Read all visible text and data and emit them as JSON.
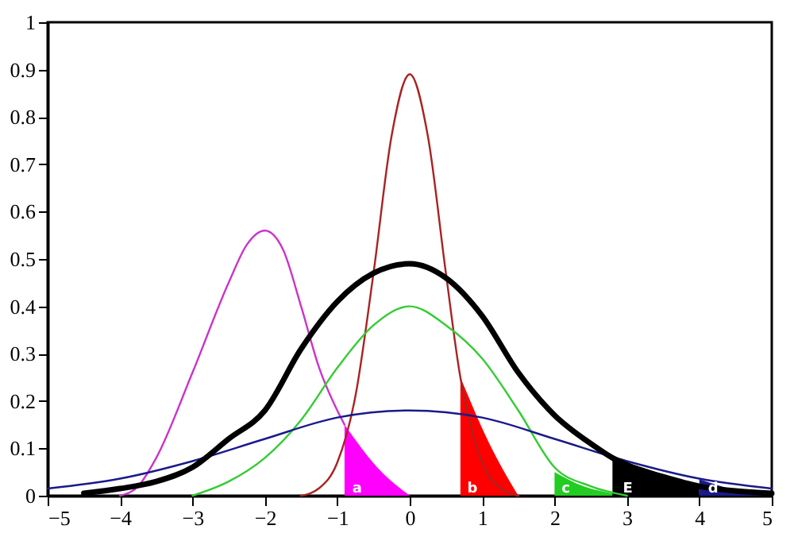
{
  "chart_data": {
    "type": "line",
    "xlim": [
      -5,
      5
    ],
    "xticks": [
      -5,
      -4,
      -3,
      -2,
      -1,
      0,
      1,
      2,
      3,
      4,
      5
    ],
    "ylim": [
      0,
      1
    ],
    "yticks": [
      0,
      0.1,
      0.2,
      0.3,
      0.4,
      0.5,
      0.6,
      0.7,
      0.8,
      0.9,
      1
    ],
    "grid": false,
    "legend": false,
    "marker": "none",
    "line_style": "solid",
    "series": [
      {
        "type": "area",
        "name": "a",
        "color": "#ff00ff",
        "x": [
          -0.9,
          -0.45,
          0
        ],
        "values": [
          0.15,
          0.06,
          0
        ]
      },
      {
        "type": "area",
        "name": "b",
        "color": "#ff0000",
        "x": [
          0.7,
          1.1,
          1.5
        ],
        "values": [
          0.25,
          0.11,
          0
        ]
      },
      {
        "type": "area",
        "name": "c",
        "color": "#22cc22",
        "x": [
          2,
          2.4,
          2.8
        ],
        "values": [
          0.05,
          0.02,
          0.005
        ]
      },
      {
        "type": "area",
        "name": "E",
        "color": "#000000",
        "x": [
          2.8,
          3.4,
          4
        ],
        "values": [
          0.08,
          0.05,
          0.02
        ]
      },
      {
        "type": "area",
        "name": "d",
        "color": "#1a1a8a",
        "x": [
          4,
          4.5,
          5
        ],
        "values": [
          0.035,
          0.012,
          0
        ]
      },
      {
        "color": "#cc33cc",
        "x": [
          -4,
          -3.75,
          -3.5,
          -3,
          -2.5,
          -2.25,
          -2,
          -1.75,
          -1.5,
          -1.25,
          -1,
          -0.9
        ],
        "values": [
          0,
          0.02,
          0.08,
          0.26,
          0.45,
          0.53,
          0.56,
          0.52,
          0.4,
          0.27,
          0.18,
          0.15
        ]
      },
      {
        "color": "#aa2222",
        "x": [
          -1.5,
          -1.25,
          -1,
          -0.75,
          -0.5,
          -0.25,
          0,
          0.25,
          0.5,
          0.7,
          0.75,
          1,
          1.25,
          1.5
        ],
        "values": [
          0,
          0.016,
          0.07,
          0.21,
          0.47,
          0.76,
          0.89,
          0.76,
          0.47,
          0.25,
          0.21,
          0.07,
          0.016,
          0
        ]
      },
      {
        "color": "#33cc33",
        "x": [
          -3,
          -2.5,
          -2,
          -1.5,
          -1,
          -0.5,
          0,
          0.5,
          1,
          1.5,
          2,
          2.5,
          3
        ],
        "values": [
          0,
          0.03,
          0.08,
          0.16,
          0.27,
          0.36,
          0.4,
          0.36,
          0.29,
          0.18,
          0.06,
          0.02,
          0
        ]
      },
      {
        "color": "#1a1a8a",
        "x": [
          -5,
          -4,
          -3,
          -2,
          -1,
          0,
          1,
          2,
          3,
          4,
          5
        ],
        "values": [
          0.015,
          0.036,
          0.073,
          0.12,
          0.165,
          0.18,
          0.165,
          0.12,
          0.073,
          0.036,
          0.015
        ]
      },
      {
        "color": "#000000",
        "x": [
          -4.5,
          -4,
          -3.5,
          -3,
          -2.5,
          -2,
          -1.5,
          -1,
          -0.5,
          0,
          0.5,
          1,
          1.5,
          2,
          2.5,
          2.8,
          3,
          3.5,
          4,
          4.5,
          5
        ],
        "values": [
          0.005,
          0.015,
          0.03,
          0.06,
          0.12,
          0.18,
          0.31,
          0.41,
          0.47,
          0.49,
          0.46,
          0.38,
          0.26,
          0.17,
          0.11,
          0.08,
          0.065,
          0.04,
          0.02,
          0.01,
          0.005
        ]
      }
    ]
  }
}
